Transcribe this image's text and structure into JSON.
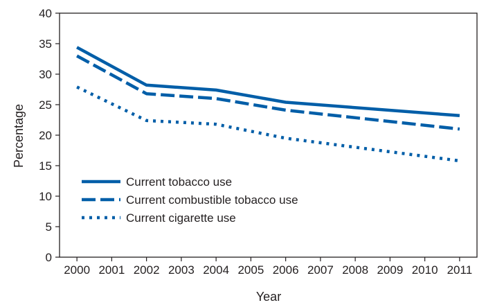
{
  "chart_data": {
    "type": "line",
    "x": [
      "2000",
      "2001",
      "2002",
      "2003",
      "2004",
      "2005",
      "2006",
      "2007",
      "2008",
      "2009",
      "2010",
      "2011"
    ],
    "xlabel": "Year",
    "ylabel": "Percentage",
    "ylim": [
      0,
      40
    ],
    "yticks": [
      0,
      5,
      10,
      15,
      20,
      25,
      30,
      35,
      40
    ],
    "grid": false,
    "legend_position": "bottom-left",
    "series": [
      {
        "name": "Current tobacco use",
        "style": "solid",
        "values": [
          34.4,
          null,
          28.2,
          null,
          27.4,
          null,
          25.4,
          null,
          null,
          null,
          null,
          23.2
        ]
      },
      {
        "name": "Current combustible tobacco use",
        "style": "dashed",
        "values": [
          33.0,
          null,
          26.8,
          null,
          26.0,
          null,
          24.1,
          null,
          null,
          null,
          null,
          21.0
        ]
      },
      {
        "name": "Current cigarette use",
        "style": "dotted",
        "values": [
          27.9,
          null,
          22.4,
          null,
          21.8,
          null,
          19.5,
          null,
          null,
          null,
          null,
          15.8
        ]
      }
    ],
    "colors": {
      "line": "#005ea8",
      "axis": "#231f20",
      "text": "#231f20"
    }
  }
}
